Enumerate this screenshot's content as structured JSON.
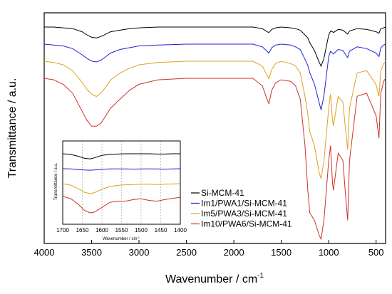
{
  "chart_data": [
    {
      "type": "line",
      "title": "",
      "xlabel": "Wavenumber / cm",
      "xlabel_superscript": "-1",
      "ylabel": "Transmittance / a.u.",
      "xlim": [
        4000,
        400
      ],
      "x_reversed": true,
      "x_ticks": [
        4000,
        3500,
        3000,
        2500,
        2000,
        1500,
        1000,
        500
      ],
      "y_ticks": "none",
      "legend_position": "bottom-right",
      "series": [
        {
          "name": "Si-MCM-41",
          "color": "#000000",
          "x": [
            4000,
            3900,
            3800,
            3700,
            3600,
            3550,
            3500,
            3450,
            3400,
            3350,
            3300,
            3200,
            3100,
            3000,
            2800,
            2500,
            2200,
            2000,
            1800,
            1700,
            1650,
            1630,
            1600,
            1560,
            1500,
            1400,
            1350,
            1300,
            1250,
            1220,
            1200,
            1150,
            1100,
            1080,
            1050,
            1000,
            980,
            960,
            950,
            900,
            850,
            820,
            800,
            780,
            700,
            600,
            500,
            470,
            450,
            420,
            400
          ],
          "y": [
            0.0,
            0.0,
            0.01,
            0.02,
            0.06,
            0.1,
            0.13,
            0.14,
            0.12,
            0.09,
            0.06,
            0.04,
            0.02,
            0.01,
            0.0,
            0.0,
            0.0,
            0.0,
            0.0,
            0.02,
            0.06,
            0.07,
            0.03,
            0.01,
            0.0,
            0.01,
            0.02,
            0.04,
            0.1,
            0.14,
            0.2,
            0.3,
            0.45,
            0.5,
            0.4,
            0.1,
            0.05,
            0.06,
            0.07,
            0.03,
            0.04,
            0.07,
            0.09,
            0.05,
            0.02,
            0.03,
            0.06,
            0.08,
            0.02,
            0.01,
            0.0
          ]
        },
        {
          "name": "Im1/PWA1/Si-MCM-41",
          "color": "#1f1fd6",
          "x": [
            4000,
            3900,
            3800,
            3700,
            3600,
            3550,
            3500,
            3450,
            3400,
            3350,
            3300,
            3200,
            3100,
            3000,
            2800,
            2500,
            2200,
            2000,
            1800,
            1700,
            1650,
            1630,
            1600,
            1560,
            1500,
            1400,
            1350,
            1300,
            1250,
            1220,
            1200,
            1150,
            1100,
            1080,
            1050,
            1000,
            980,
            960,
            950,
            900,
            850,
            820,
            800,
            780,
            700,
            600,
            500,
            470,
            450,
            420,
            400
          ],
          "y": [
            0.0,
            0.01,
            0.02,
            0.05,
            0.12,
            0.16,
            0.19,
            0.2,
            0.18,
            0.14,
            0.1,
            0.06,
            0.04,
            0.02,
            0.01,
            0.0,
            0.0,
            0.0,
            0.0,
            0.03,
            0.08,
            0.1,
            0.04,
            0.01,
            0.0,
            0.01,
            0.03,
            0.06,
            0.17,
            0.24,
            0.32,
            0.45,
            0.66,
            0.74,
            0.58,
            0.14,
            0.08,
            0.1,
            0.11,
            0.06,
            0.07,
            0.12,
            0.15,
            0.08,
            0.03,
            0.05,
            0.1,
            0.14,
            0.04,
            0.01,
            0.0
          ]
        },
        {
          "name": "Im5/PWA3/Si-MCM-41",
          "color": "#e0a020",
          "x": [
            4000,
            3900,
            3800,
            3700,
            3600,
            3550,
            3500,
            3450,
            3400,
            3350,
            3300,
            3200,
            3100,
            3000,
            2800,
            2500,
            2200,
            2000,
            1800,
            1700,
            1650,
            1630,
            1600,
            1560,
            1500,
            1400,
            1350,
            1300,
            1250,
            1220,
            1200,
            1150,
            1100,
            1080,
            1050,
            1000,
            980,
            960,
            950,
            900,
            850,
            820,
            800,
            780,
            700,
            600,
            500,
            470,
            450,
            420,
            400
          ],
          "y": [
            0.0,
            0.01,
            0.03,
            0.08,
            0.18,
            0.24,
            0.28,
            0.3,
            0.27,
            0.22,
            0.16,
            0.1,
            0.06,
            0.03,
            0.01,
            0.0,
            0.0,
            0.0,
            0.0,
            0.04,
            0.12,
            0.15,
            0.07,
            0.02,
            0.0,
            0.02,
            0.04,
            0.1,
            0.3,
            0.45,
            0.6,
            0.72,
            0.95,
            1.0,
            0.85,
            0.4,
            0.28,
            0.5,
            0.55,
            0.3,
            0.35,
            0.6,
            0.75,
            0.4,
            0.1,
            0.08,
            0.2,
            0.3,
            0.08,
            0.02,
            0.0
          ]
        },
        {
          "name": "Im10/PWA6/Si-MCM-41",
          "color": "#d0302a",
          "x": [
            4000,
            3900,
            3800,
            3700,
            3600,
            3550,
            3500,
            3450,
            3400,
            3350,
            3300,
            3200,
            3100,
            3000,
            2800,
            2500,
            2200,
            2000,
            1800,
            1700,
            1650,
            1630,
            1600,
            1560,
            1500,
            1400,
            1350,
            1300,
            1250,
            1220,
            1200,
            1150,
            1100,
            1080,
            1050,
            1000,
            980,
            960,
            950,
            900,
            850,
            820,
            800,
            780,
            700,
            600,
            500,
            470,
            450,
            420,
            400
          ],
          "y": [
            0.0,
            0.01,
            0.04,
            0.1,
            0.22,
            0.28,
            0.32,
            0.32,
            0.3,
            0.25,
            0.2,
            0.14,
            0.08,
            0.04,
            0.01,
            0.0,
            0.0,
            0.0,
            0.0,
            0.05,
            0.14,
            0.17,
            0.08,
            0.03,
            0.01,
            0.02,
            0.05,
            0.14,
            0.45,
            0.75,
            0.9,
            0.95,
            1.05,
            1.1,
            0.95,
            0.55,
            0.45,
            0.7,
            0.75,
            0.5,
            0.55,
            0.8,
            0.95,
            0.55,
            0.12,
            0.1,
            0.25,
            0.4,
            0.1,
            0.02,
            0.0
          ]
        }
      ]
    },
    {
      "type": "line",
      "title": "",
      "xlabel": "Wavenumber / cm",
      "xlabel_superscript": "-1",
      "ylabel": "Transmittance / a.u.",
      "xlim": [
        1700,
        1400
      ],
      "x_reversed": true,
      "x_ticks": [
        1700,
        1650,
        1600,
        1550,
        1500,
        1450,
        1400
      ],
      "grid": "vertical dashed",
      "series": [
        {
          "name": "Si-MCM-41",
          "color": "#000000",
          "x": [
            1700,
            1680,
            1660,
            1645,
            1630,
            1620,
            1600,
            1580,
            1560,
            1540,
            1520,
            1500,
            1480,
            1460,
            1440,
            1420,
            1400
          ],
          "y": [
            0.0,
            0.02,
            0.08,
            0.14,
            0.16,
            0.13,
            0.05,
            0.02,
            0.01,
            0.0,
            0.0,
            0.0,
            0.0,
            0.01,
            0.01,
            0.0,
            0.0
          ]
        },
        {
          "name": "Im1/PWA1/Si-MCM-41",
          "color": "#1f1fd6",
          "x": [
            1700,
            1680,
            1660,
            1645,
            1630,
            1620,
            1600,
            1580,
            1560,
            1540,
            1520,
            1500,
            1480,
            1460,
            1440,
            1420,
            1400
          ],
          "y": [
            0.0,
            0.01,
            0.04,
            0.06,
            0.07,
            0.06,
            0.03,
            0.01,
            0.01,
            0.01,
            0.02,
            0.01,
            0.01,
            0.01,
            0.02,
            0.01,
            0.0
          ]
        },
        {
          "name": "Im5/PWA3/Si-MCM-41",
          "color": "#e0a020",
          "x": [
            1700,
            1680,
            1660,
            1645,
            1630,
            1620,
            1600,
            1580,
            1560,
            1540,
            1520,
            1500,
            1480,
            1460,
            1440,
            1420,
            1400
          ],
          "y": [
            0.0,
            0.05,
            0.18,
            0.3,
            0.35,
            0.32,
            0.2,
            0.1,
            0.06,
            0.04,
            0.03,
            0.02,
            0.02,
            0.03,
            0.02,
            0.01,
            0.0
          ]
        },
        {
          "name": "Im10/PWA6/Si-MCM-41",
          "color": "#d0302a",
          "x": [
            1700,
            1680,
            1660,
            1645,
            1630,
            1620,
            1600,
            1580,
            1560,
            1540,
            1520,
            1500,
            1480,
            1460,
            1440,
            1420,
            1400
          ],
          "y": [
            0.0,
            0.05,
            0.2,
            0.35,
            0.42,
            0.4,
            0.28,
            0.15,
            0.12,
            0.12,
            0.08,
            0.06,
            0.1,
            0.12,
            0.08,
            0.05,
            0.02
          ]
        }
      ]
    }
  ]
}
